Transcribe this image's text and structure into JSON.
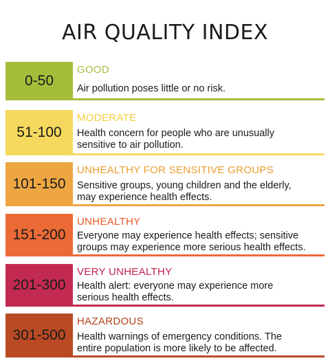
{
  "title": "AIR QUALITY INDEX",
  "rows": [
    {
      "range": "0-50",
      "level": "GOOD",
      "lines": [
        "Air pollution poses little or no risk."
      ],
      "color": "#a4be3c",
      "level_color": "#a4be3c"
    },
    {
      "range": "51-100",
      "level": "MODERATE",
      "lines": [
        "Health concern for  people who are unusually",
        "sensitive to air pollution."
      ],
      "color": "#f5d95e",
      "level_color": "#f2cd3a"
    },
    {
      "range": "101-150",
      "level": "UNHEALTHY FOR SENSITIVE GROUPS",
      "lines": [
        "Sensitive groups, young children and the elderly,",
        "may experience health effects."
      ],
      "color": "#eea642",
      "level_color": "#ea9d2e"
    },
    {
      "range": "151-200",
      "level": "UNHEALTHY",
      "lines": [
        "Everyone may experience health effects; sensitive",
        "groups may experience more serious health effects."
      ],
      "color": "#ec6a36",
      "level_color": "#e55a26"
    },
    {
      "range": "201-300",
      "level": "VERY UNHEALTHY",
      "lines": [
        "Health alert: everyone may experience more",
        "serious health effects."
      ],
      "color": "#c32a52",
      "level_color": "#c0234a"
    },
    {
      "range": "301-500",
      "level": "HAZARDOUS",
      "lines": [
        "Health warnings of emergency conditions. The",
        "entire population is more likely to be affected."
      ],
      "color": "#b94a24",
      "level_color": "#b2421c"
    }
  ]
}
